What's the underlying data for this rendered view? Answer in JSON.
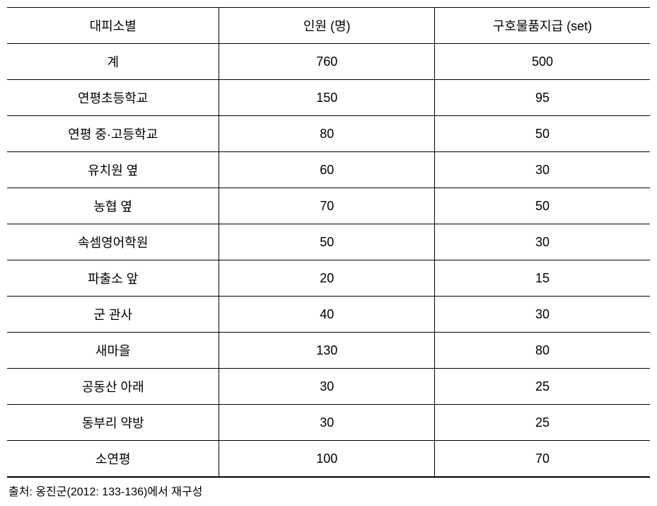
{
  "table": {
    "headers": [
      "대피소별",
      "인원 (명)",
      "구호물품지급 (set)"
    ],
    "rows": [
      [
        "계",
        "760",
        "500"
      ],
      [
        "연평초등학교",
        "150",
        "95"
      ],
      [
        "연평 중·고등학교",
        "80",
        "50"
      ],
      [
        "유치원 옆",
        "60",
        "30"
      ],
      [
        "농협 옆",
        "70",
        "50"
      ],
      [
        "속셈영어학원",
        "50",
        "30"
      ],
      [
        "파출소 앞",
        "20",
        "15"
      ],
      [
        "군 관사",
        "40",
        "30"
      ],
      [
        "새마을",
        "130",
        "80"
      ],
      [
        "공동산 아래",
        "30",
        "25"
      ],
      [
        "동부리 약방",
        "30",
        "25"
      ],
      [
        "소연평",
        "100",
        "70"
      ]
    ]
  },
  "source": "출처: 옹진군(2012: 133-136)에서 재구성"
}
